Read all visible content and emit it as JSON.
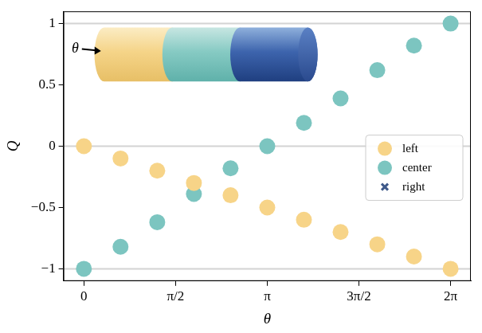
{
  "chart_data": {
    "type": "scatter",
    "x_label": "θ",
    "y_label": "Q",
    "annotations": [
      "θ"
    ],
    "x": [
      0,
      0.628,
      1.257,
      1.885,
      2.513,
      3.142,
      3.77,
      4.398,
      5.027,
      5.655,
      6.283
    ],
    "series": [
      {
        "name": "left",
        "color": "#f7d488",
        "marker": "circle",
        "values": [
          0,
          -0.1,
          -0.2,
          -0.3,
          -0.4,
          -0.5,
          -0.6,
          -0.7,
          -0.8,
          -0.9,
          -1.0
        ]
      },
      {
        "name": "center",
        "color": "#7cc5c0",
        "marker": "circle",
        "values": [
          -1.0,
          -0.82,
          -0.62,
          -0.39,
          -0.18,
          0,
          0.19,
          0.39,
          0.62,
          0.82,
          1.0
        ]
      },
      {
        "name": "right",
        "color": "#3f5a8a",
        "marker": "x",
        "values": [
          0,
          -0.1,
          -0.2,
          -0.3,
          -0.4,
          -0.5,
          -0.6,
          -0.7,
          -0.8,
          -0.9,
          -1.0
        ]
      }
    ],
    "xlim": [
      -0.35,
      6.63
    ],
    "ylim": [
      -1.1,
      1.1
    ],
    "xticks": [
      0,
      {
        "value": 1.571,
        "label": "π/2"
      },
      {
        "value": 3.142,
        "label": "π"
      },
      {
        "value": 4.712,
        "label": "3π/2"
      },
      {
        "value": 6.283,
        "label": "2π"
      }
    ],
    "yticks": [
      {
        "value": -1,
        "label": "−1"
      },
      {
        "value": -0.5,
        "label": "−0.5"
      },
      0,
      0.5,
      1
    ],
    "hlines": [
      -1,
      0,
      1
    ],
    "grid": false,
    "legend": "right"
  }
}
